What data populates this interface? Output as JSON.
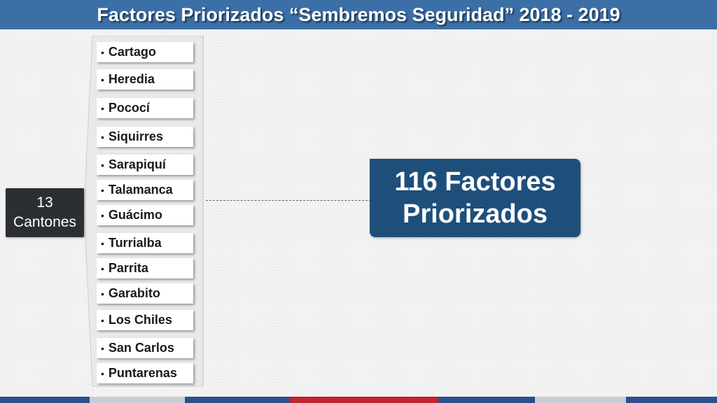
{
  "header": {
    "title": "Factores Priorizados “Sembremos Seguridad” 2018 - 2019"
  },
  "root": {
    "count": "13",
    "label": "Cantones"
  },
  "bullet": "•",
  "cantones": [
    "Cartago",
    "Heredia",
    "Pococí",
    "Siquirres",
    "Sarapiquí",
    "Talamanca",
    "Guácimo",
    "Turrialba",
    "Parrita",
    "Garabito",
    "Los Chiles",
    "San Carlos",
    "Puntarenas"
  ],
  "result": {
    "line1": "116 Factores",
    "line2": "Priorizados"
  },
  "colors": {
    "header_bg": "#3b6fa6",
    "root_bg": "#2b2e33",
    "result_bg": "#1e4f7b",
    "strip": [
      "#2f4f8a",
      "#c8cdd6",
      "#2f4f8a",
      "#c0242c",
      "#2f4f8a",
      "#c8cdd6",
      "#2f4f8a"
    ]
  }
}
